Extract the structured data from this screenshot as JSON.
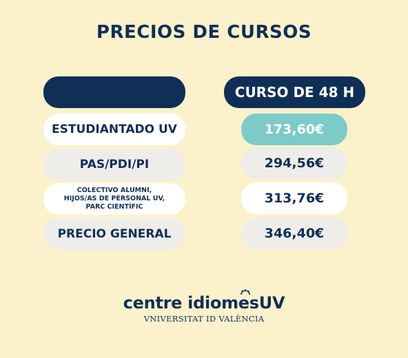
{
  "title": "PRECIOS DE CURSOS",
  "table": {
    "header_left": "",
    "header_right": "CURSO DE 48 H",
    "rows": [
      {
        "label": "ESTUDIANTADO UV",
        "price": "173,60€"
      },
      {
        "label": "PAS/PDI/PI",
        "price": "294,56€"
      },
      {
        "label": "COLECTIVO ALUMNI,\nHIJOS/AS DE PERSONAL UV,\nPARC CIENTÍFIC",
        "price": "313,76€"
      },
      {
        "label": "PRECIO GENERAL",
        "price": "346,40€"
      }
    ]
  },
  "logo": {
    "main": "centre idiomesUV",
    "sub": "VNIVERSITAT ID VALÈNCIA"
  },
  "colors": {
    "background": "#fbf1cb",
    "navy": "#0f2f57",
    "teal": "#7ccbc8",
    "grey": "#eeedea",
    "white": "#ffffff"
  }
}
